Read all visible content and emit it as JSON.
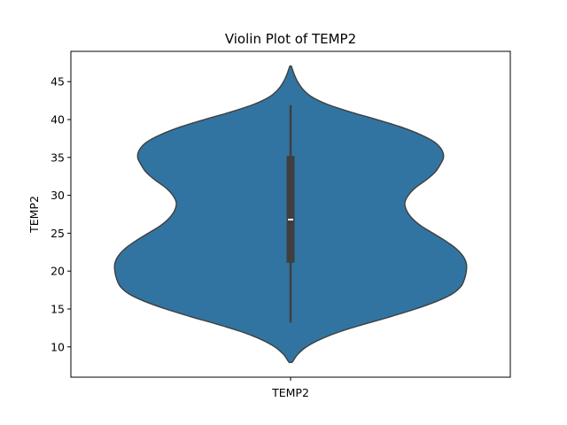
{
  "chart_data": {
    "type": "violin",
    "title": "Violin Plot of TEMP2",
    "xlabel": "",
    "ylabel": "TEMP2",
    "categories": [
      "TEMP2"
    ],
    "ylim": [
      6,
      49
    ],
    "yticks": [
      10,
      15,
      20,
      25,
      30,
      35,
      40,
      45
    ],
    "grid": false,
    "colors": {
      "body": "#3274a1",
      "outline": "#3f3f3f",
      "box": "#3f3f3f",
      "median": "#ffffff"
    },
    "box": {
      "whisker_low": 13.2,
      "q1": 21.1,
      "median": 26.8,
      "q3": 35.2,
      "whisker_high": 41.9
    },
    "density": {
      "y": [
        8,
        9,
        10,
        11,
        12,
        13,
        14,
        15,
        16,
        17,
        18,
        19,
        20,
        21,
        22,
        23,
        24,
        25,
        26,
        27,
        28,
        29,
        30,
        31,
        32,
        33,
        34,
        35,
        36,
        37,
        38,
        39,
        40,
        41,
        42,
        43,
        44,
        45,
        46,
        47
      ],
      "relative_width": [
        0.01,
        0.04,
        0.09,
        0.17,
        0.28,
        0.42,
        0.57,
        0.71,
        0.83,
        0.92,
        0.97,
        0.99,
        1.0,
        1.0,
        0.98,
        0.94,
        0.88,
        0.81,
        0.74,
        0.69,
        0.66,
        0.65,
        0.67,
        0.71,
        0.77,
        0.82,
        0.85,
        0.87,
        0.86,
        0.82,
        0.74,
        0.63,
        0.49,
        0.34,
        0.21,
        0.12,
        0.07,
        0.04,
        0.02,
        0.005
      ]
    }
  }
}
